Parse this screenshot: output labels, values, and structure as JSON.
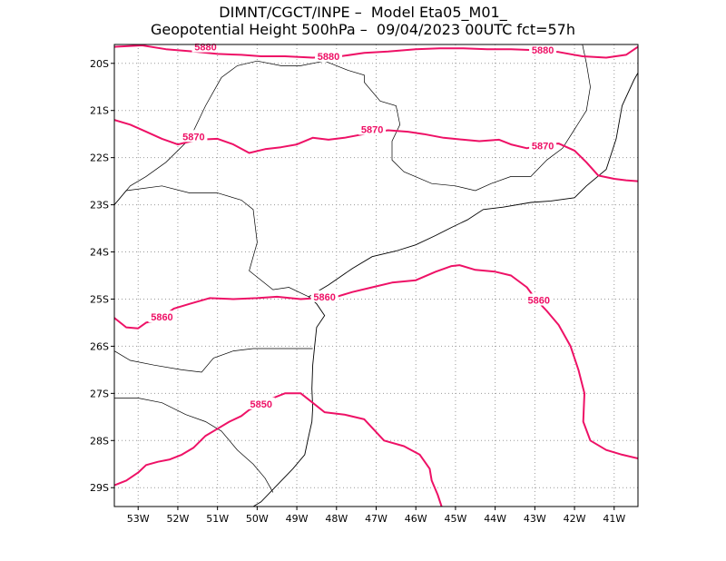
{
  "title": {
    "line1": "DIMNT/CGCT/INPE –  Model Eta05_M01_",
    "line2": "Geopotential Height 500hPa –  09/04/2023 00UTC fct=57h"
  },
  "colors": {
    "contour": "#ee1166",
    "coastline": "#000000",
    "grid": "#999999",
    "frame": "#000000",
    "background": "#ffffff"
  },
  "chart_data": {
    "type": "contour",
    "variable": "Geopotential Height 500hPa",
    "xlim": [
      -53.6,
      -40.4
    ],
    "ylim": [
      -29.4,
      -19.6
    ],
    "grid": true,
    "x_ticks": [
      {
        "value": -53,
        "label": "53W"
      },
      {
        "value": -52,
        "label": "52W"
      },
      {
        "value": -51,
        "label": "51W"
      },
      {
        "value": -50,
        "label": "50W"
      },
      {
        "value": -49,
        "label": "49W"
      },
      {
        "value": -48,
        "label": "48W"
      },
      {
        "value": -47,
        "label": "47W"
      },
      {
        "value": -46,
        "label": "46W"
      },
      {
        "value": -45,
        "label": "45W"
      },
      {
        "value": -44,
        "label": "44W"
      },
      {
        "value": -43,
        "label": "43W"
      },
      {
        "value": -42,
        "label": "42W"
      },
      {
        "value": -41,
        "label": "41W"
      }
    ],
    "y_ticks": [
      {
        "value": -20,
        "label": "20S"
      },
      {
        "value": -21,
        "label": "21S"
      },
      {
        "value": -22,
        "label": "22S"
      },
      {
        "value": -23,
        "label": "23S"
      },
      {
        "value": -24,
        "label": "24S"
      },
      {
        "value": -25,
        "label": "25S"
      },
      {
        "value": -26,
        "label": "26S"
      },
      {
        "value": -27,
        "label": "27S"
      },
      {
        "value": -28,
        "label": "28S"
      },
      {
        "value": -29,
        "label": "29S"
      }
    ],
    "contours": [
      {
        "level": 5880,
        "points": [
          [
            -53.6,
            -19.65
          ],
          [
            -52.9,
            -19.62
          ],
          [
            -52.3,
            -19.7
          ],
          [
            -51.6,
            -19.75
          ],
          [
            -51.0,
            -19.8
          ],
          [
            -50.4,
            -19.82
          ],
          [
            -49.9,
            -19.85
          ],
          [
            -49.3,
            -19.85
          ],
          [
            -48.6,
            -19.88
          ],
          [
            -47.9,
            -19.85
          ],
          [
            -47.3,
            -19.78
          ],
          [
            -46.7,
            -19.75
          ],
          [
            -46.0,
            -19.7
          ],
          [
            -45.4,
            -19.68
          ],
          [
            -44.8,
            -19.68
          ],
          [
            -44.2,
            -19.7
          ],
          [
            -43.6,
            -19.7
          ],
          [
            -43.0,
            -19.72
          ],
          [
            -42.4,
            -19.76
          ],
          [
            -41.8,
            -19.85
          ],
          [
            -41.2,
            -19.88
          ],
          [
            -40.7,
            -19.82
          ],
          [
            -40.4,
            -19.65
          ]
        ],
        "labels": [
          {
            "text": "5880",
            "x": -51.3,
            "y": -19.65
          },
          {
            "text": "5880",
            "x": -48.2,
            "y": -19.85
          },
          {
            "text": "5880",
            "x": -42.8,
            "y": -19.72
          }
        ]
      },
      {
        "level": 5870,
        "points": [
          [
            -53.6,
            -21.2
          ],
          [
            -53.2,
            -21.3
          ],
          [
            -52.8,
            -21.45
          ],
          [
            -52.4,
            -21.6
          ],
          [
            -52.0,
            -21.72
          ],
          [
            -51.5,
            -21.62
          ],
          [
            -51.0,
            -21.6
          ],
          [
            -50.6,
            -21.72
          ],
          [
            -50.2,
            -21.9
          ],
          [
            -49.8,
            -21.82
          ],
          [
            -49.4,
            -21.78
          ],
          [
            -49.0,
            -21.72
          ],
          [
            -48.6,
            -21.58
          ],
          [
            -48.2,
            -21.62
          ],
          [
            -47.8,
            -21.58
          ],
          [
            -47.3,
            -21.5
          ],
          [
            -46.7,
            -21.42
          ],
          [
            -46.2,
            -21.45
          ],
          [
            -45.8,
            -21.5
          ],
          [
            -45.3,
            -21.58
          ],
          [
            -44.8,
            -21.62
          ],
          [
            -44.4,
            -21.65
          ],
          [
            -43.9,
            -21.62
          ],
          [
            -43.6,
            -21.72
          ],
          [
            -43.2,
            -21.8
          ],
          [
            -42.8,
            -21.72
          ],
          [
            -42.4,
            -21.7
          ],
          [
            -42.0,
            -21.85
          ],
          [
            -41.7,
            -22.1
          ],
          [
            -41.4,
            -22.38
          ],
          [
            -41.0,
            -22.45
          ],
          [
            -40.7,
            -22.48
          ],
          [
            -40.4,
            -22.5
          ]
        ],
        "labels": [
          {
            "text": "5870",
            "x": -51.6,
            "y": -21.55
          },
          {
            "text": "5870",
            "x": -47.1,
            "y": -21.4
          },
          {
            "text": "5870",
            "x": -42.8,
            "y": -21.75
          }
        ]
      },
      {
        "level": 5860,
        "points": [
          [
            -53.6,
            -25.4
          ],
          [
            -53.3,
            -25.6
          ],
          [
            -53.0,
            -25.62
          ],
          [
            -52.8,
            -25.5
          ],
          [
            -52.5,
            -25.45
          ],
          [
            -52.4,
            -25.38
          ],
          [
            -52.1,
            -25.2
          ],
          [
            -51.7,
            -25.1
          ],
          [
            -51.2,
            -24.98
          ],
          [
            -50.6,
            -25.0
          ],
          [
            -50.0,
            -24.98
          ],
          [
            -49.5,
            -24.95
          ],
          [
            -48.9,
            -25.0
          ],
          [
            -48.5,
            -24.98
          ],
          [
            -48.0,
            -24.95
          ],
          [
            -47.6,
            -24.85
          ],
          [
            -47.1,
            -24.75
          ],
          [
            -46.6,
            -24.65
          ],
          [
            -46.0,
            -24.6
          ],
          [
            -45.5,
            -24.42
          ],
          [
            -45.1,
            -24.3
          ],
          [
            -44.9,
            -24.28
          ],
          [
            -44.5,
            -24.38
          ],
          [
            -44.0,
            -24.42
          ],
          [
            -43.6,
            -24.5
          ],
          [
            -43.2,
            -24.75
          ],
          [
            -43.0,
            -24.98
          ],
          [
            -42.7,
            -25.25
          ],
          [
            -42.4,
            -25.55
          ],
          [
            -42.1,
            -26.0
          ],
          [
            -41.9,
            -26.5
          ],
          [
            -41.75,
            -27.0
          ],
          [
            -41.78,
            -27.6
          ],
          [
            -41.6,
            -28.0
          ],
          [
            -41.2,
            -28.2
          ],
          [
            -40.8,
            -28.3
          ],
          [
            -40.4,
            -28.38
          ]
        ],
        "labels": [
          {
            "text": "5860",
            "x": -52.4,
            "y": -25.38
          },
          {
            "text": "5860",
            "x": -48.3,
            "y": -24.95
          },
          {
            "text": "5860",
            "x": -42.9,
            "y": -25.02
          }
        ]
      },
      {
        "level": 5850,
        "points": [
          [
            -53.6,
            -28.95
          ],
          [
            -53.3,
            -28.85
          ],
          [
            -53.0,
            -28.68
          ],
          [
            -52.8,
            -28.52
          ],
          [
            -52.5,
            -28.45
          ],
          [
            -52.2,
            -28.4
          ],
          [
            -51.9,
            -28.3
          ],
          [
            -51.6,
            -28.15
          ],
          [
            -51.3,
            -27.9
          ],
          [
            -51.0,
            -27.75
          ],
          [
            -50.7,
            -27.6
          ],
          [
            -50.4,
            -27.48
          ],
          [
            -50.2,
            -27.35
          ],
          [
            -49.9,
            -27.22
          ],
          [
            -49.6,
            -27.1
          ],
          [
            -49.3,
            -27.0
          ],
          [
            -48.9,
            -27.0
          ],
          [
            -48.6,
            -27.2
          ],
          [
            -48.3,
            -27.4
          ],
          [
            -47.8,
            -27.45
          ],
          [
            -47.3,
            -27.55
          ],
          [
            -46.8,
            -28.0
          ],
          [
            -46.3,
            -28.12
          ],
          [
            -45.9,
            -28.3
          ],
          [
            -45.65,
            -28.6
          ],
          [
            -45.6,
            -28.85
          ],
          [
            -45.45,
            -29.15
          ],
          [
            -45.35,
            -29.4
          ]
        ],
        "labels": [
          {
            "text": "5850",
            "x": -49.9,
            "y": -27.22
          }
        ]
      }
    ],
    "coastline": [
      [
        [
          -48.7,
          -24.95
        ],
        [
          -48.5,
          -25.1
        ],
        [
          -48.3,
          -25.35
        ],
        [
          -48.5,
          -25.6
        ],
        [
          -48.55,
          -26.0
        ],
        [
          -48.6,
          -26.4
        ],
        [
          -48.62,
          -26.9
        ],
        [
          -48.6,
          -27.3
        ],
        [
          -48.62,
          -27.6
        ],
        [
          -48.7,
          -27.9
        ],
        [
          -48.8,
          -28.3
        ],
        [
          -49.1,
          -28.6
        ],
        [
          -49.5,
          -28.95
        ],
        [
          -49.9,
          -29.3
        ],
        [
          -50.1,
          -29.4
        ]
      ],
      [
        [
          -48.7,
          -24.95
        ],
        [
          -48.2,
          -24.7
        ],
        [
          -47.6,
          -24.35
        ],
        [
          -47.1,
          -24.1
        ],
        [
          -46.5,
          -23.98
        ],
        [
          -46.0,
          -23.85
        ],
        [
          -45.5,
          -23.65
        ],
        [
          -45.1,
          -23.48
        ],
        [
          -44.7,
          -23.32
        ],
        [
          -44.3,
          -23.1
        ],
        [
          -43.8,
          -23.05
        ],
        [
          -43.1,
          -22.95
        ],
        [
          -42.6,
          -22.92
        ],
        [
          -42.0,
          -22.85
        ],
        [
          -41.7,
          -22.6
        ],
        [
          -41.2,
          -22.25
        ],
        [
          -40.95,
          -21.6
        ],
        [
          -40.8,
          -20.9
        ],
        [
          -40.5,
          -20.35
        ],
        [
          -40.4,
          -20.2
        ]
      ]
    ],
    "borders": [
      [
        [
          -53.6,
          -23.0
        ],
        [
          -53.2,
          -22.6
        ],
        [
          -52.8,
          -22.4
        ],
        [
          -52.3,
          -22.1
        ],
        [
          -51.7,
          -21.6
        ],
        [
          -51.3,
          -20.9
        ],
        [
          -50.9,
          -20.3
        ],
        [
          -50.5,
          -20.05
        ],
        [
          -50.0,
          -19.95
        ],
        [
          -49.4,
          -20.05
        ],
        [
          -48.9,
          -20.05
        ],
        [
          -48.3,
          -19.95
        ],
        [
          -47.7,
          -20.15
        ],
        [
          -47.3,
          -20.25
        ],
        [
          -47.3,
          -20.4
        ],
        [
          -46.9,
          -20.8
        ],
        [
          -46.5,
          -20.9
        ],
        [
          -46.4,
          -21.3
        ],
        [
          -46.6,
          -21.65
        ],
        [
          -46.6,
          -22.05
        ],
        [
          -46.3,
          -22.3
        ],
        [
          -45.6,
          -22.55
        ],
        [
          -45.0,
          -22.6
        ],
        [
          -44.5,
          -22.7
        ],
        [
          -44.1,
          -22.55
        ],
        [
          -43.6,
          -22.4
        ],
        [
          -43.1,
          -22.4
        ],
        [
          -42.7,
          -22.05
        ],
        [
          -42.3,
          -21.8
        ],
        [
          -42.0,
          -21.4
        ],
        [
          -41.7,
          -21.0
        ],
        [
          -41.6,
          -20.5
        ],
        [
          -41.7,
          -20.0
        ],
        [
          -41.8,
          -19.6
        ]
      ],
      [
        [
          -53.6,
          -23.0
        ],
        [
          -53.3,
          -22.7
        ],
        [
          -52.4,
          -22.6
        ],
        [
          -51.7,
          -22.75
        ],
        [
          -51.0,
          -22.75
        ],
        [
          -50.4,
          -22.9
        ],
        [
          -50.1,
          -23.1
        ],
        [
          -50.0,
          -23.8
        ],
        [
          -50.2,
          -24.4
        ],
        [
          -49.6,
          -24.8
        ],
        [
          -49.2,
          -24.75
        ],
        [
          -48.7,
          -24.95
        ]
      ],
      [
        [
          -53.6,
          -26.1
        ],
        [
          -53.2,
          -26.3
        ],
        [
          -52.6,
          -26.4
        ],
        [
          -51.9,
          -26.5
        ],
        [
          -51.4,
          -26.55
        ],
        [
          -51.1,
          -26.25
        ],
        [
          -50.6,
          -26.1
        ],
        [
          -50.1,
          -26.05
        ],
        [
          -49.6,
          -26.05
        ],
        [
          -49.2,
          -26.05
        ],
        [
          -48.6,
          -26.05
        ]
      ],
      [
        [
          -53.6,
          -27.1
        ],
        [
          -53.0,
          -27.1
        ],
        [
          -52.4,
          -27.2
        ],
        [
          -51.8,
          -27.45
        ],
        [
          -51.3,
          -27.6
        ],
        [
          -50.9,
          -27.8
        ],
        [
          -50.5,
          -28.2
        ],
        [
          -50.1,
          -28.5
        ],
        [
          -49.8,
          -28.8
        ],
        [
          -49.6,
          -29.1
        ]
      ]
    ]
  }
}
